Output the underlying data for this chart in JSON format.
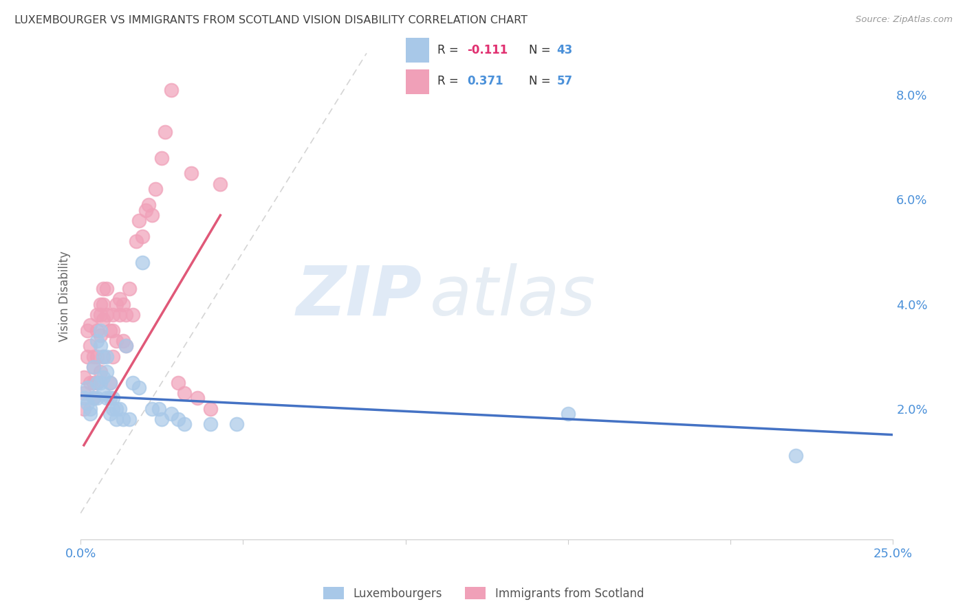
{
  "title": "LUXEMBOURGER VS IMMIGRANTS FROM SCOTLAND VISION DISABILITY CORRELATION CHART",
  "source": "Source: ZipAtlas.com",
  "ylabel": "Vision Disability",
  "ytick_vals": [
    0.02,
    0.04,
    0.06,
    0.08
  ],
  "ytick_labels": [
    "2.0%",
    "4.0%",
    "6.0%",
    "8.0%"
  ],
  "xlim": [
    0.0,
    0.25
  ],
  "ylim": [
    -0.005,
    0.088
  ],
  "legend_label1": "Luxembourgers",
  "legend_label2": "Immigrants from Scotland",
  "color_blue": "#a8c8e8",
  "color_pink": "#f0a0b8",
  "line_color_blue": "#4472c4",
  "line_color_pink": "#e05878",
  "diag_line_color": "#d0d0d0",
  "background": "#ffffff",
  "grid_color": "#e8e8e8",
  "title_color": "#404040",
  "axis_label_color": "#4a90d9",
  "luxembourgers_x": [
    0.001,
    0.002,
    0.002,
    0.003,
    0.003,
    0.004,
    0.004,
    0.005,
    0.005,
    0.005,
    0.006,
    0.006,
    0.006,
    0.007,
    0.007,
    0.007,
    0.008,
    0.008,
    0.008,
    0.009,
    0.009,
    0.009,
    0.01,
    0.01,
    0.011,
    0.011,
    0.012,
    0.013,
    0.014,
    0.015,
    0.016,
    0.018,
    0.019,
    0.022,
    0.024,
    0.025,
    0.028,
    0.03,
    0.032,
    0.04,
    0.048,
    0.15,
    0.22
  ],
  "luxembourgers_y": [
    0.022,
    0.024,
    0.021,
    0.02,
    0.019,
    0.028,
    0.022,
    0.033,
    0.025,
    0.022,
    0.035,
    0.032,
    0.025,
    0.03,
    0.026,
    0.023,
    0.03,
    0.027,
    0.022,
    0.025,
    0.022,
    0.019,
    0.022,
    0.02,
    0.02,
    0.018,
    0.02,
    0.018,
    0.032,
    0.018,
    0.025,
    0.024,
    0.048,
    0.02,
    0.02,
    0.018,
    0.019,
    0.018,
    0.017,
    0.017,
    0.017,
    0.019,
    0.011
  ],
  "scotland_x": [
    0.001,
    0.001,
    0.001,
    0.002,
    0.002,
    0.003,
    0.003,
    0.003,
    0.004,
    0.004,
    0.004,
    0.004,
    0.005,
    0.005,
    0.005,
    0.005,
    0.006,
    0.006,
    0.006,
    0.006,
    0.007,
    0.007,
    0.007,
    0.007,
    0.008,
    0.008,
    0.009,
    0.009,
    0.01,
    0.01,
    0.01,
    0.011,
    0.011,
    0.012,
    0.012,
    0.013,
    0.013,
    0.014,
    0.014,
    0.015,
    0.016,
    0.017,
    0.018,
    0.019,
    0.02,
    0.021,
    0.022,
    0.023,
    0.025,
    0.026,
    0.028,
    0.03,
    0.032,
    0.034,
    0.036,
    0.04,
    0.043
  ],
  "scotland_y": [
    0.026,
    0.023,
    0.02,
    0.035,
    0.03,
    0.036,
    0.032,
    0.025,
    0.03,
    0.028,
    0.025,
    0.022,
    0.038,
    0.035,
    0.03,
    0.025,
    0.04,
    0.038,
    0.034,
    0.027,
    0.043,
    0.04,
    0.037,
    0.03,
    0.043,
    0.038,
    0.035,
    0.025,
    0.038,
    0.035,
    0.03,
    0.04,
    0.033,
    0.041,
    0.038,
    0.04,
    0.033,
    0.038,
    0.032,
    0.043,
    0.038,
    0.052,
    0.056,
    0.053,
    0.058,
    0.059,
    0.057,
    0.062,
    0.068,
    0.073,
    0.081,
    0.025,
    0.023,
    0.065,
    0.022,
    0.02,
    0.063
  ],
  "blue_trend_x": [
    0.0,
    0.25
  ],
  "blue_trend_y": [
    0.0225,
    0.015
  ],
  "pink_trend_x": [
    0.001,
    0.043
  ],
  "pink_trend_y": [
    0.013,
    0.057
  ]
}
